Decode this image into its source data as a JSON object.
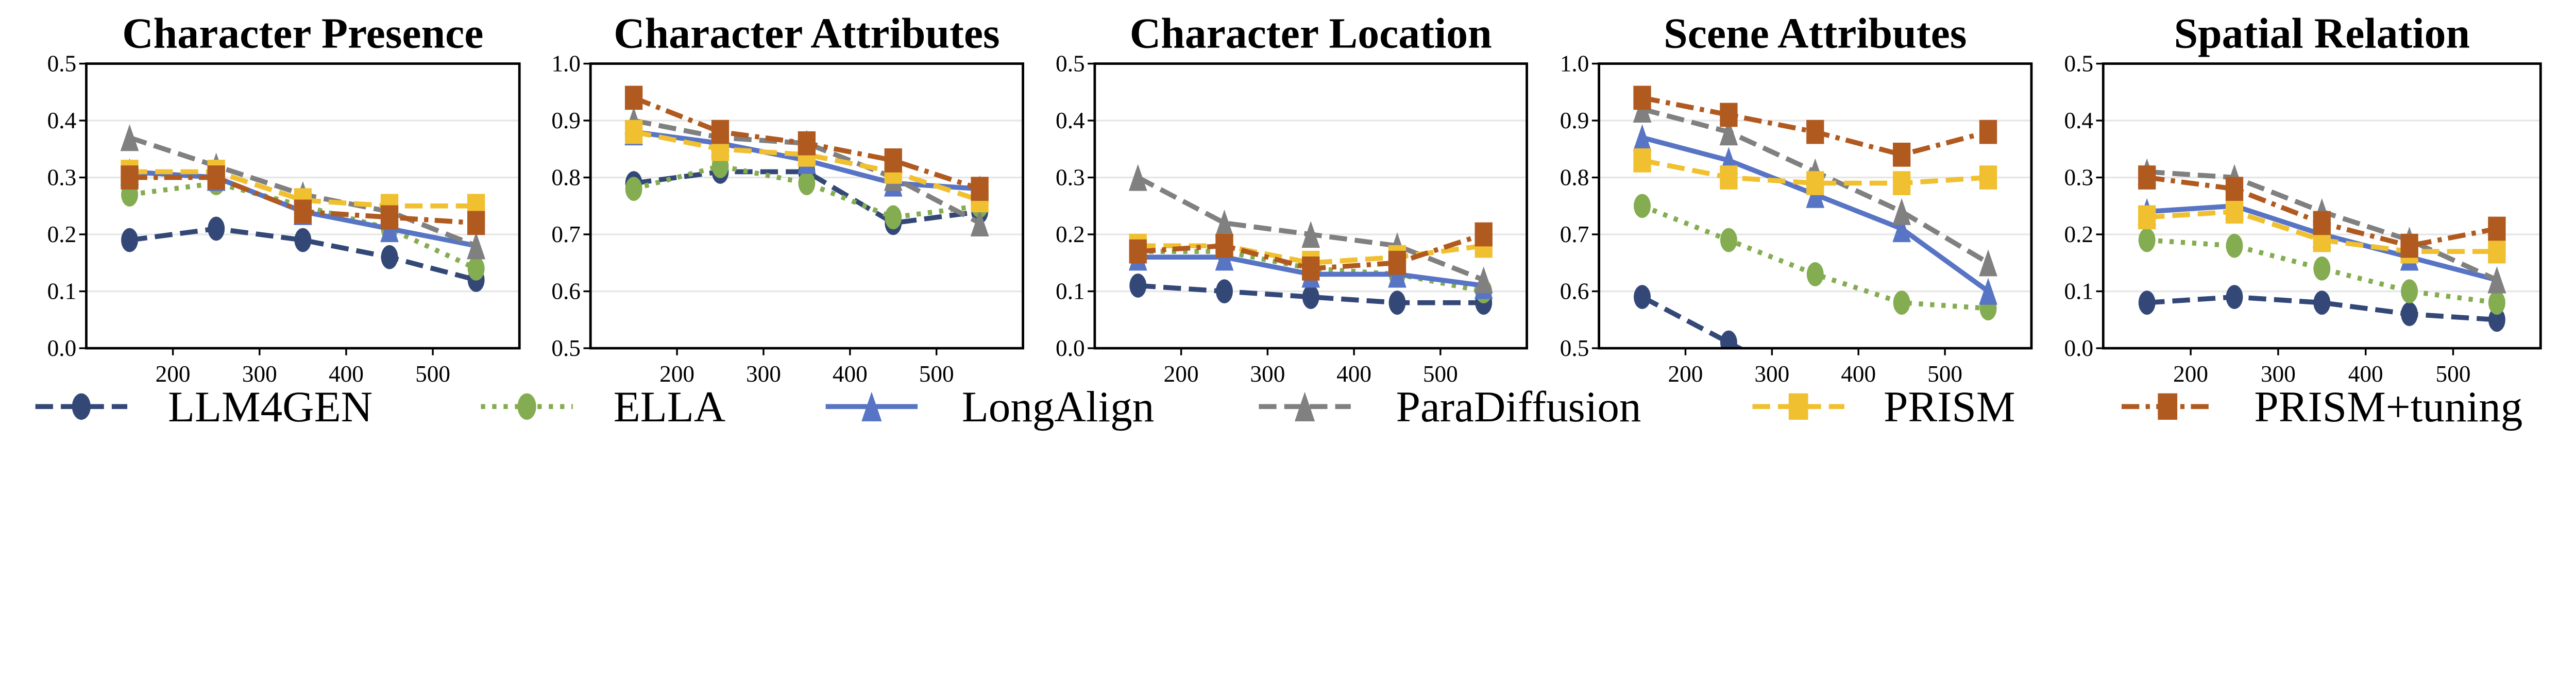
{
  "chart_data": {
    "type": "line",
    "x": [
      150,
      250,
      350,
      450,
      550
    ],
    "xlim": [
      100,
      600
    ],
    "xticks": [
      200,
      300,
      400,
      500
    ],
    "grid": "horizontal",
    "legend_position": "bottom",
    "series_styles": [
      {
        "name": "LLM4GEN",
        "color": "#344878",
        "marker": "circle",
        "line": "dashed"
      },
      {
        "name": "ELLA",
        "color": "#84AC50",
        "marker": "circle",
        "line": "dotted"
      },
      {
        "name": "LongAlign",
        "color": "#5874C4",
        "marker": "triangle",
        "line": "solid"
      },
      {
        "name": "ParaDiffusion",
        "color": "#808080",
        "marker": "triangle",
        "line": "dashed"
      },
      {
        "name": "PRISM",
        "color": "#F0C030",
        "marker": "square",
        "line": "dashed"
      },
      {
        "name": "PRISM+tuning",
        "color": "#B05A20",
        "marker": "square",
        "line": "dashdot"
      }
    ],
    "panels": [
      {
        "title": "Character Presence",
        "ylim": [
          0.0,
          0.5
        ],
        "yticks": [
          "0.0",
          "0.1",
          "0.2",
          "0.3",
          "0.4",
          "0.5"
        ],
        "series": [
          {
            "name": "LLM4GEN",
            "values": [
              0.19,
              0.21,
              0.19,
              0.16,
              0.12
            ]
          },
          {
            "name": "ELLA",
            "values": [
              0.27,
              0.29,
              0.25,
              0.21,
              0.14
            ]
          },
          {
            "name": "LongAlign",
            "values": [
              0.31,
              0.3,
              0.24,
              0.21,
              0.18
            ]
          },
          {
            "name": "ParaDiffusion",
            "values": [
              0.37,
              0.32,
              0.27,
              0.24,
              0.18
            ]
          },
          {
            "name": "PRISM",
            "values": [
              0.31,
              0.31,
              0.26,
              0.25,
              0.25
            ]
          },
          {
            "name": "PRISM+tuning",
            "values": [
              0.3,
              0.3,
              0.24,
              0.23,
              0.22
            ]
          }
        ]
      },
      {
        "title": "Character Attributes",
        "ylim": [
          0.5,
          1.0
        ],
        "yticks": [
          "0.5",
          "0.6",
          "0.7",
          "0.8",
          "0.9",
          "1.0"
        ],
        "series": [
          {
            "name": "LLM4GEN",
            "values": [
              0.79,
              0.81,
              0.81,
              0.72,
              0.74
            ]
          },
          {
            "name": "ELLA",
            "values": [
              0.78,
              0.82,
              0.79,
              0.73,
              0.75
            ]
          },
          {
            "name": "LongAlign",
            "values": [
              0.88,
              0.86,
              0.83,
              0.79,
              0.78
            ]
          },
          {
            "name": "ParaDiffusion",
            "values": [
              0.9,
              0.87,
              0.86,
              0.8,
              0.72
            ]
          },
          {
            "name": "PRISM",
            "values": [
              0.88,
              0.85,
              0.84,
              0.81,
              0.76
            ]
          },
          {
            "name": "PRISM+tuning",
            "values": [
              0.94,
              0.88,
              0.86,
              0.83,
              0.78
            ]
          }
        ]
      },
      {
        "title": "Character Location",
        "ylim": [
          0.0,
          0.5
        ],
        "yticks": [
          "0.0",
          "0.1",
          "0.2",
          "0.3",
          "0.4",
          "0.5"
        ],
        "series": [
          {
            "name": "LLM4GEN",
            "values": [
              0.11,
              0.1,
              0.09,
              0.08,
              0.08
            ]
          },
          {
            "name": "ELLA",
            "values": [
              0.17,
              0.17,
              0.14,
              0.13,
              0.1
            ]
          },
          {
            "name": "LongAlign",
            "values": [
              0.16,
              0.16,
              0.13,
              0.13,
              0.11
            ]
          },
          {
            "name": "ParaDiffusion",
            "values": [
              0.3,
              0.22,
              0.2,
              0.18,
              0.12
            ]
          },
          {
            "name": "PRISM",
            "values": [
              0.18,
              0.18,
              0.15,
              0.16,
              0.18
            ]
          },
          {
            "name": "PRISM+tuning",
            "values": [
              0.17,
              0.18,
              0.14,
              0.15,
              0.2
            ]
          }
        ]
      },
      {
        "title": "Scene Attributes",
        "ylim": [
          0.5,
          1.0
        ],
        "yticks": [
          "0.5",
          "0.6",
          "0.7",
          "0.8",
          "0.9",
          "1.0"
        ],
        "series": [
          {
            "name": "LLM4GEN",
            "values": [
              0.59,
              0.51,
              null,
              null,
              null
            ]
          },
          {
            "name": "ELLA",
            "values": [
              0.75,
              0.69,
              0.63,
              0.58,
              0.57
            ]
          },
          {
            "name": "LongAlign",
            "values": [
              0.87,
              0.83,
              0.77,
              0.71,
              0.6
            ]
          },
          {
            "name": "ParaDiffusion",
            "values": [
              0.92,
              0.88,
              0.81,
              0.74,
              0.65
            ]
          },
          {
            "name": "PRISM",
            "values": [
              0.83,
              0.8,
              0.79,
              0.79,
              0.8
            ]
          },
          {
            "name": "PRISM+tuning",
            "values": [
              0.94,
              0.91,
              0.88,
              0.84,
              0.88
            ]
          }
        ]
      },
      {
        "title": "Spatial Relation",
        "ylim": [
          0.0,
          0.5
        ],
        "yticks": [
          "0.0",
          "0.1",
          "0.2",
          "0.3",
          "0.4",
          "0.5"
        ],
        "series": [
          {
            "name": "LLM4GEN",
            "values": [
              0.08,
              0.09,
              0.08,
              0.06,
              0.05
            ]
          },
          {
            "name": "ELLA",
            "values": [
              0.19,
              0.18,
              0.14,
              0.1,
              0.08
            ]
          },
          {
            "name": "LongAlign",
            "values": [
              0.24,
              0.25,
              0.2,
              0.16,
              0.12
            ]
          },
          {
            "name": "ParaDiffusion",
            "values": [
              0.31,
              0.3,
              0.24,
              0.19,
              0.12
            ]
          },
          {
            "name": "PRISM",
            "values": [
              0.23,
              0.24,
              0.19,
              0.17,
              0.17
            ]
          },
          {
            "name": "PRISM+tuning",
            "values": [
              0.3,
              0.28,
              0.22,
              0.18,
              0.21
            ]
          }
        ]
      }
    ]
  }
}
